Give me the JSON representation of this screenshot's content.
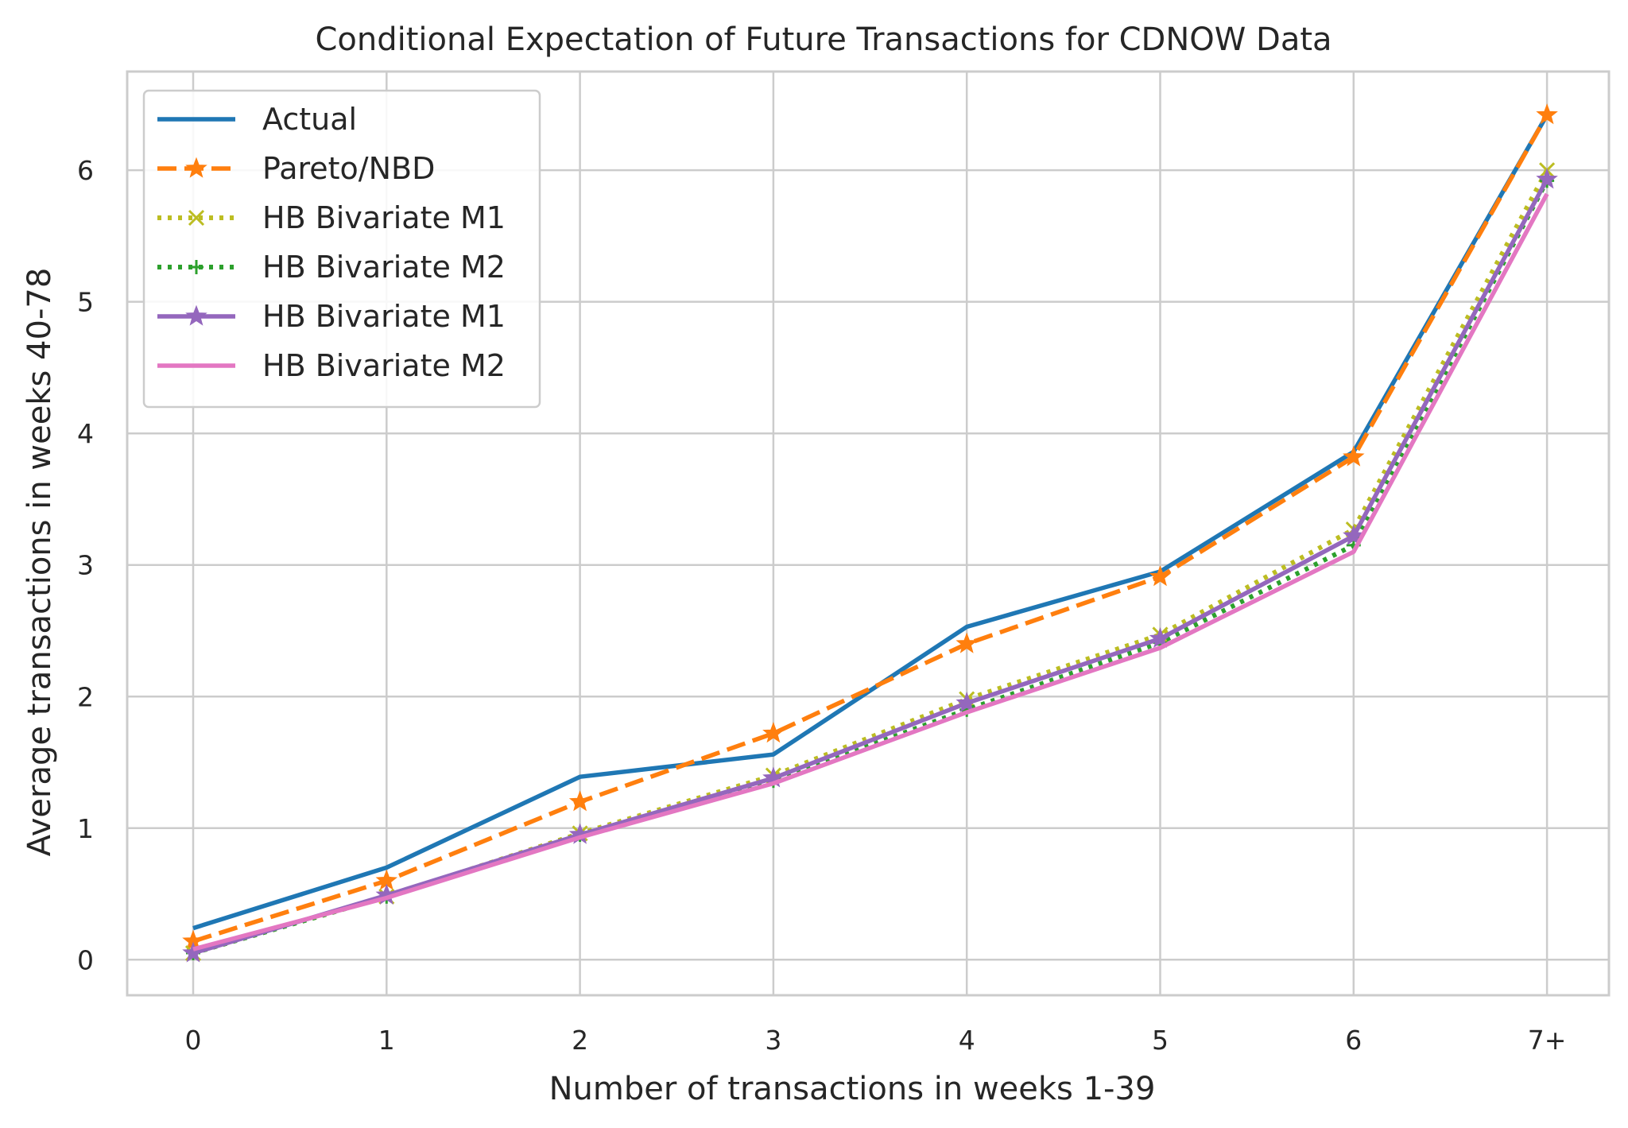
{
  "chart_data": {
    "type": "line",
    "title": "Conditional Expectation of Future Transactions for CDNOW Data",
    "xlabel": "Number of transactions in weeks 1-39",
    "ylabel": "Average transactions in weeks 40-78",
    "categories": [
      "0",
      "1",
      "2",
      "3",
      "4",
      "5",
      "6",
      "7+"
    ],
    "yticks": [
      "0",
      "1",
      "2",
      "3",
      "4",
      "5",
      "6"
    ],
    "ylim": [
      -0.27,
      6.75
    ],
    "grid": true,
    "legend_position": "top-left",
    "series": [
      {
        "name": "Actual",
        "color": "#1f77b4",
        "line_style": "solid",
        "marker": "none",
        "values": [
          0.24,
          0.7,
          1.39,
          1.56,
          2.53,
          2.95,
          3.86,
          6.42
        ]
      },
      {
        "name": "Pareto/NBD",
        "color": "#ff7f0e",
        "line_style": "dashed",
        "marker": "star",
        "values": [
          0.14,
          0.6,
          1.2,
          1.72,
          2.4,
          2.91,
          3.82,
          6.42
        ]
      },
      {
        "name": "HB Bivariate M1",
        "color": "#bcbd22",
        "line_style": "dotted",
        "marker": "x",
        "values": [
          0.05,
          0.48,
          0.96,
          1.4,
          1.98,
          2.47,
          3.27,
          6.0
        ]
      },
      {
        "name": "HB Bivariate M2",
        "color": "#2ca02c",
        "line_style": "dotted",
        "marker": "plus",
        "values": [
          0.05,
          0.48,
          0.95,
          1.36,
          1.9,
          2.41,
          3.15,
          5.92
        ]
      },
      {
        "name": "HB Bivariate M1",
        "color": "#9467bd",
        "line_style": "solid",
        "marker": "star",
        "values": [
          0.05,
          0.49,
          0.95,
          1.38,
          1.95,
          2.44,
          3.22,
          5.93
        ]
      },
      {
        "name": "HB Bivariate M2",
        "color": "#e377c2",
        "line_style": "solid",
        "marker": "none",
        "values": [
          0.08,
          0.47,
          0.93,
          1.34,
          1.88,
          2.37,
          3.1,
          5.82
        ]
      }
    ]
  }
}
